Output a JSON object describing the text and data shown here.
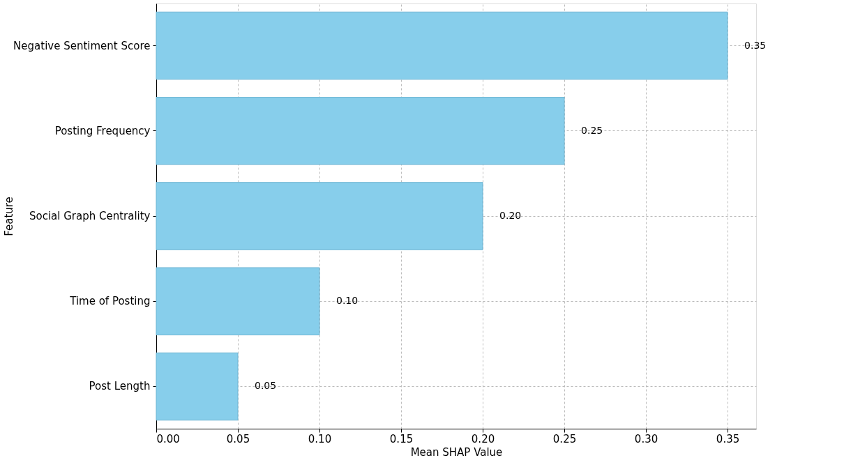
{
  "chart_data": {
    "type": "bar",
    "orientation": "horizontal",
    "xlabel": "Mean SHAP Value",
    "ylabel": "Feature",
    "categories": [
      "Negative Sentiment Score",
      "Posting Frequency",
      "Social Graph Centrality",
      "Time of Posting",
      "Post Length"
    ],
    "values": [
      0.35,
      0.25,
      0.2,
      0.1,
      0.05
    ],
    "value_labels": [
      "0.35",
      "0.25",
      "0.20",
      "0.10",
      "0.05"
    ],
    "color": "#87ceeb",
    "xlim": [
      0,
      0.3675
    ],
    "xticks": [
      {
        "value": 0,
        "label": "0.00"
      },
      {
        "value": 0.05,
        "label": "0.05"
      },
      {
        "value": 0.1,
        "label": "0.10"
      },
      {
        "value": 0.15,
        "label": "0.15"
      },
      {
        "value": 0.2,
        "label": "0.20"
      },
      {
        "value": 0.25,
        "label": "0.25"
      },
      {
        "value": 0.3,
        "label": "0.30"
      },
      {
        "value": 0.35,
        "label": "0.35"
      }
    ],
    "grid": true
  }
}
